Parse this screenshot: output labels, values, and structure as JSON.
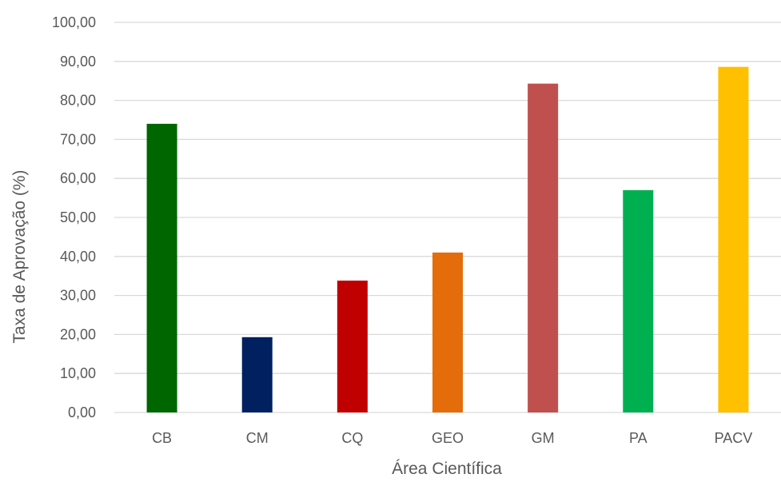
{
  "chart_data": {
    "type": "bar",
    "title": "",
    "xlabel": "Área Científica",
    "ylabel": "Taxa de Aprovação (%)",
    "categories": [
      "CB",
      "CM",
      "CQ",
      "GEO",
      "GM",
      "PA",
      "PACV"
    ],
    "values": [
      74.0,
      19.3,
      33.8,
      41.0,
      84.3,
      57.0,
      88.6
    ],
    "colors": [
      "#006600",
      "#002060",
      "#c00000",
      "#e46c0a",
      "#c0504d",
      "#00b050",
      "#ffc000"
    ],
    "ylim": [
      0,
      100
    ],
    "yticks": [
      "0,00",
      "10,00",
      "20,00",
      "30,00",
      "40,00",
      "50,00",
      "60,00",
      "70,00",
      "80,00",
      "90,00",
      "100,00"
    ],
    "grid": true,
    "legend": "none"
  }
}
